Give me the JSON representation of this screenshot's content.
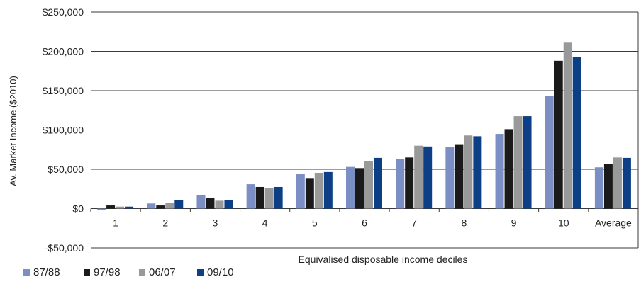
{
  "chart_data": {
    "type": "bar",
    "title": "",
    "xlabel": "Equivalised disposable income deciles",
    "ylabel": "Av. Market Income ($2010)",
    "ylim": [
      -50000,
      250000
    ],
    "yticks": [
      250000,
      200000,
      150000,
      100000,
      50000,
      0,
      -50000
    ],
    "ytick_labels": [
      "$250,000",
      "$200,000",
      "$150,000",
      "$100,000",
      "$50,000",
      "$0",
      "-$50,000"
    ],
    "categories": [
      "1",
      "2",
      "3",
      "4",
      "5",
      "6",
      "7",
      "8",
      "9",
      "10",
      "Average"
    ],
    "grid": "horizontal",
    "legend_position": "bottom-left",
    "series": [
      {
        "name": "87/88",
        "color": "#7b8fc4",
        "values": [
          -2000,
          6500,
          17000,
          31000,
          44500,
          53000,
          63000,
          78000,
          95000,
          143000,
          52500
        ]
      },
      {
        "name": "97/98",
        "color": "#1a1a1a",
        "values": [
          4000,
          4000,
          13500,
          27500,
          38000,
          51500,
          65000,
          81000,
          101000,
          188000,
          57000
        ]
      },
      {
        "name": "06/07",
        "color": "#999999",
        "values": [
          2500,
          7500,
          10000,
          26500,
          45500,
          60000,
          80000,
          93000,
          117500,
          211000,
          65000
        ]
      },
      {
        "name": "09/10",
        "color": "#0d3f86",
        "values": [
          2500,
          10500,
          11000,
          27500,
          46500,
          64500,
          79000,
          92000,
          117500,
          192500,
          64500
        ]
      }
    ]
  }
}
